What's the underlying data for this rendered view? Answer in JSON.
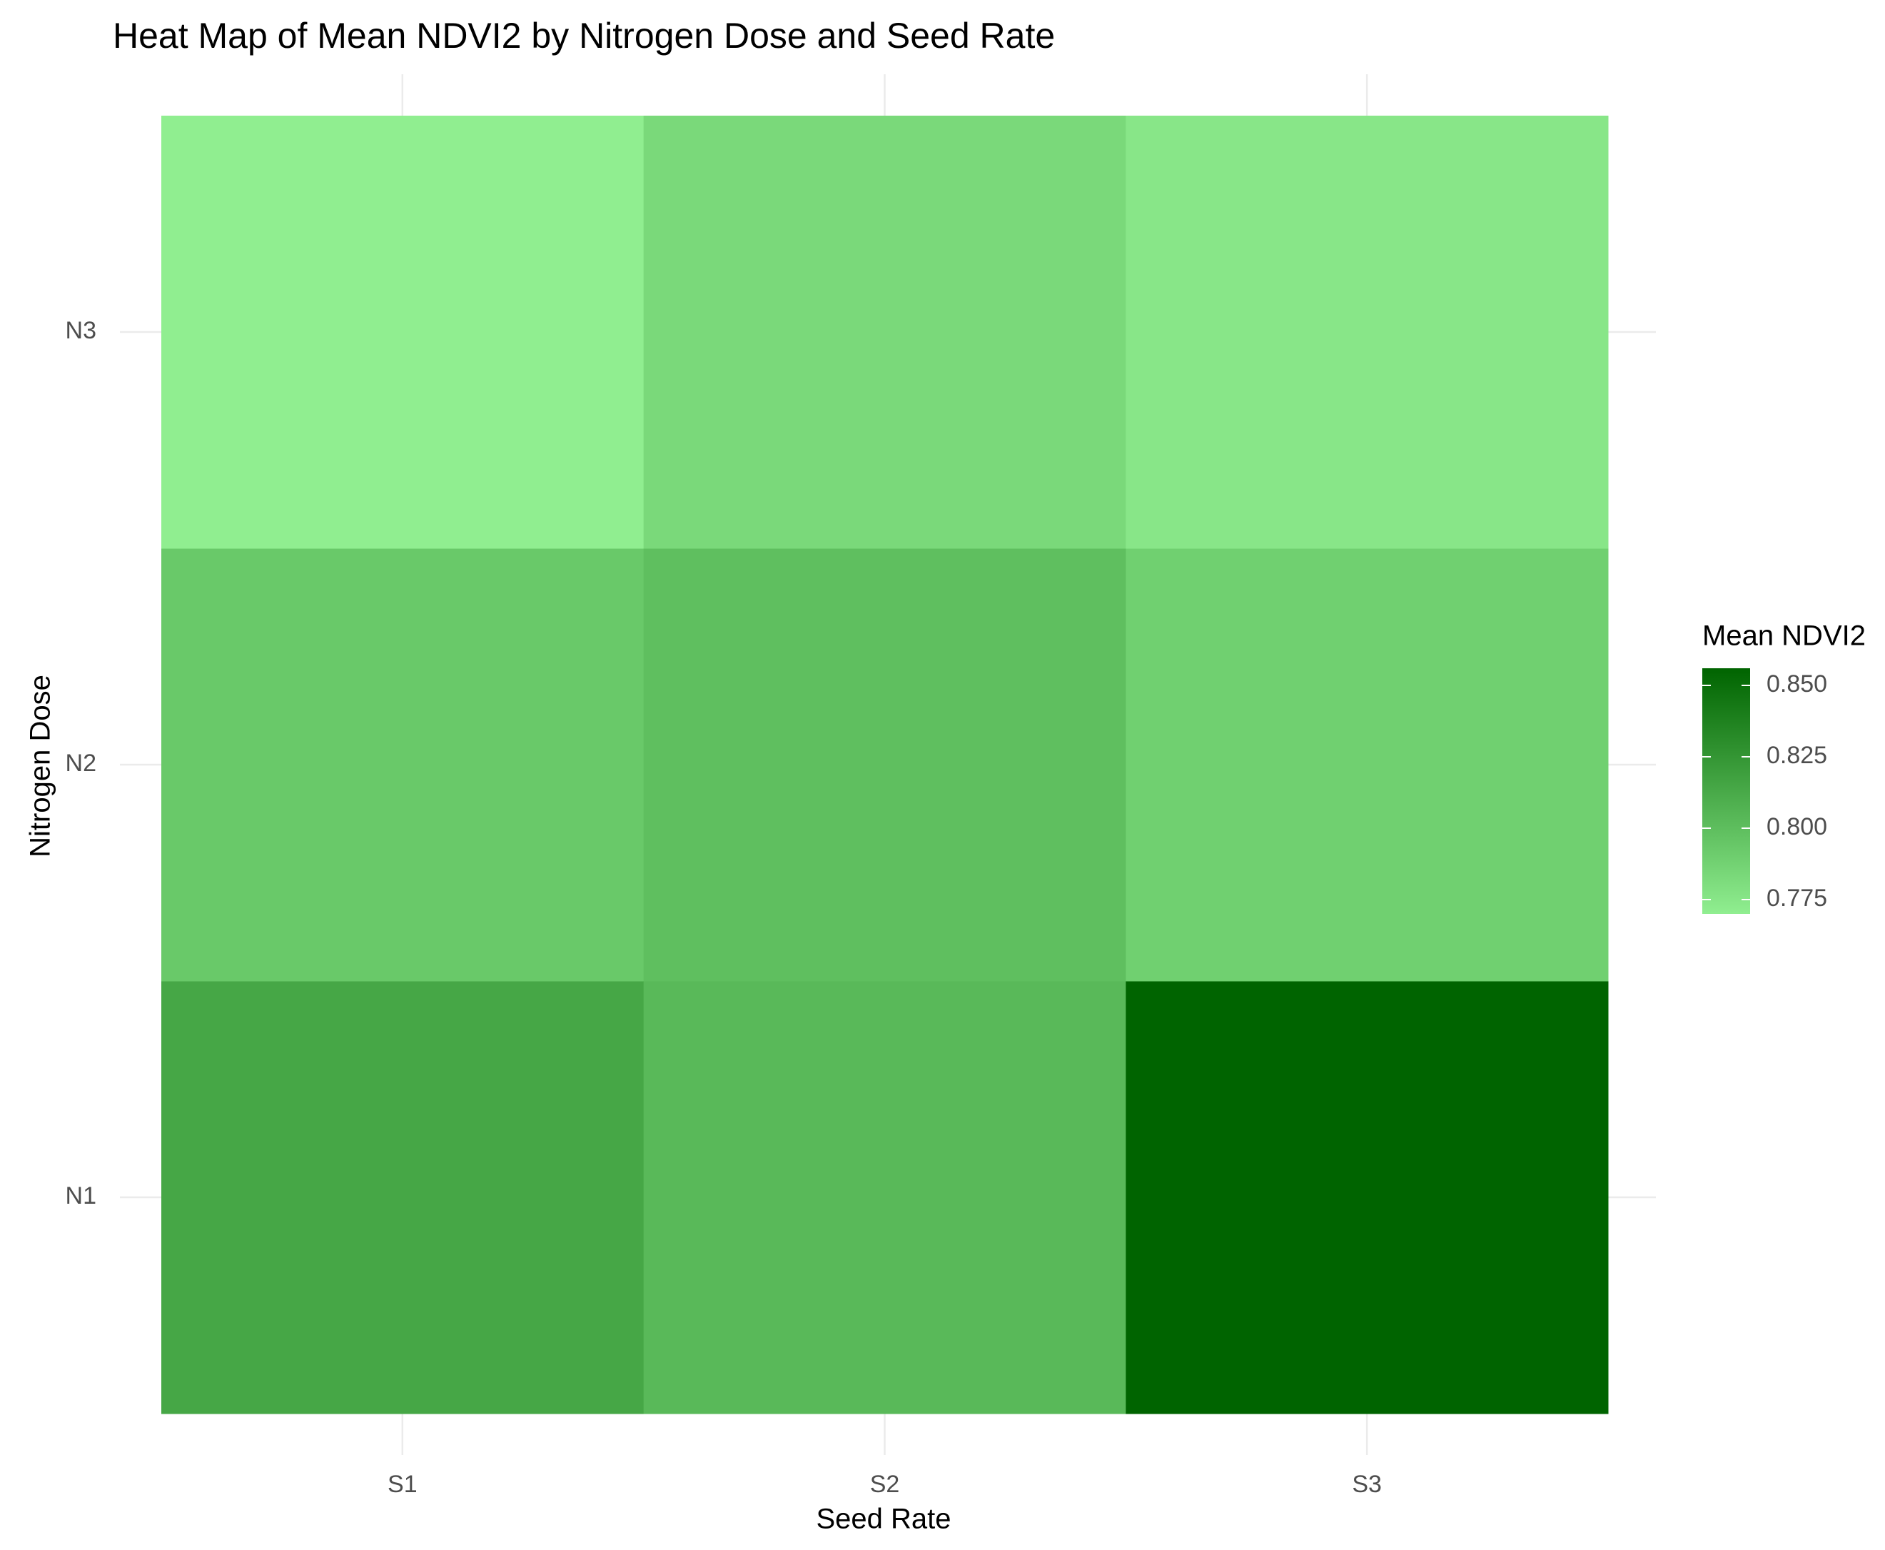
{
  "chart_data": {
    "type": "heatmap",
    "title": "Heat Map of Mean NDVI2 by Nitrogen Dose and Seed Rate",
    "x_label": "Seed Rate",
    "y_label": "Nitrogen Dose",
    "x_categories": [
      "S1",
      "S2",
      "S3"
    ],
    "y_categories": [
      "N1",
      "N2",
      "N3"
    ],
    "values": [
      [
        0.814,
        0.803,
        0.856
      ],
      [
        0.793,
        0.799,
        0.789
      ],
      [
        0.77,
        0.783,
        0.775
      ]
    ],
    "legend_title": "Mean NDVI2",
    "low_color": "#90ee90",
    "high_color": "#006400",
    "clim": [
      0.77,
      0.856
    ],
    "cticks": [
      0.775,
      {
        "value": 0.8,
        "label": "0.800"
      },
      0.825,
      {
        "value": 0.85,
        "label": "0.850"
      }
    ],
    "grid": true,
    "legend_position": "right"
  }
}
